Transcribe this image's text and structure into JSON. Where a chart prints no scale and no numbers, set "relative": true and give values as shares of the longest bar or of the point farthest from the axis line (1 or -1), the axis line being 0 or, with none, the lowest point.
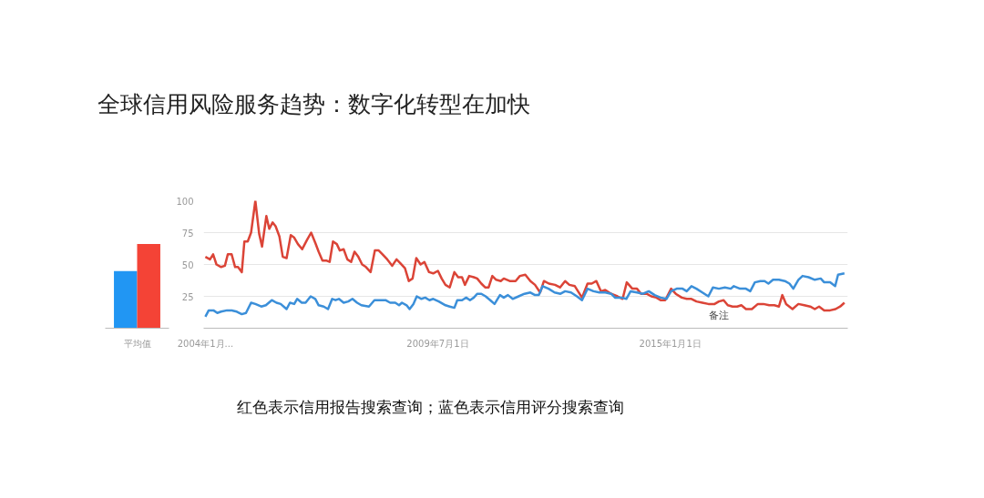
{
  "chart_data": [
    {
      "type": "bar",
      "relative": true,
      "categories": [
        "平均值"
      ],
      "series": [
        {
          "color": "#2196f3",
          "values": [
            0.68
          ]
        },
        {
          "color": "#f44336",
          "values": [
            1
          ]
        }
      ],
      "grid": false
    },
    {
      "type": "line",
      "title": "全球信用风险服务趋势：数字化转型在加快",
      "annotations": [
        "备注",
        "红色表示信用报告搜索查询；蓝色表示信用评分搜索查询"
      ],
      "xlim": [
        "2003-12-17",
        "2019-03-15"
      ],
      "ylim": [
        0,
        100
      ],
      "xticks": [
        {
          "value": "2004-01-01",
          "label": "2004年1月..."
        },
        {
          "value": "2009-07-01",
          "label": "2009年7月1日"
        },
        {
          "value": "2015-01-01",
          "label": "2015年1月1日"
        }
      ],
      "yticks": [
        25,
        50,
        75,
        100
      ],
      "grid": "y",
      "marker": "none",
      "line_style": "solid",
      "series": [
        {
          "color": "#db4437",
          "x": [
            "2004-01-01",
            "2004-02-10",
            "2004-03-08",
            "2004-04-06",
            "2004-05-16",
            "2004-06-18",
            "2004-07-13",
            "2004-08-15",
            "2004-09-14",
            "2004-10-09",
            "2004-11-11",
            "2004-12-03",
            "2005-01-01",
            "2005-01-30",
            "2005-03-08",
            "2005-04-10",
            "2005-05-05",
            "2005-06-11",
            "2005-07-06",
            "2005-08-04",
            "2005-08-30",
            "2005-10-02",
            "2005-10-31",
            "2005-12-03",
            "2006-01-08",
            "2006-02-07",
            "2006-03-11",
            "2006-04-17",
            "2006-05-27",
            "2006-07-03",
            "2006-08-08",
            "2006-09-06",
            "2006-10-09",
            "2006-11-15",
            "2006-12-10",
            "2007-01-08",
            "2007-02-10",
            "2007-03-08",
            "2007-04-10",
            "2007-05-12",
            "2007-06-14",
            "2007-07-13",
            "2007-08-15",
            "2007-09-17",
            "2007-10-20",
            "2007-11-29",
            "2008-01-05",
            "2008-02-07",
            "2008-03-11",
            "2008-04-21",
            "2008-06-03",
            "2008-07-10",
            "2008-08-12",
            "2008-09-21",
            "2008-10-24",
            "2008-11-26",
            "2008-12-28",
            "2009-02-03",
            "2009-03-08",
            "2009-04-17",
            "2009-05-23",
            "2009-07-03",
            "2009-08-04",
            "2009-09-06",
            "2009-10-13",
            "2009-11-22",
            "2009-12-25",
            "2010-01-27",
            "2010-02-21",
            "2010-03-30",
            "2010-05-09",
            "2010-06-07",
            "2010-07-13",
            "2010-08-15",
            "2010-09-14",
            "2010-10-16",
            "2010-11-18",
            "2010-12-28",
            "2011-01-23",
            "2011-03-15",
            "2011-05-05",
            "2011-06-11",
            "2011-07-28",
            "2011-09-10",
            "2011-10-20",
            "2011-12-03",
            "2012-01-05",
            "2012-02-17",
            "2012-04-10",
            "2012-05-23",
            "2012-07-06",
            "2012-08-12",
            "2012-09-28",
            "2012-11-29",
            "2013-01-16",
            "2013-02-21",
            "2013-04-02",
            "2013-05-12",
            "2013-06-18",
            "2013-08-08",
            "2013-10-02",
            "2013-11-15",
            "2013-12-21",
            "2014-02-07",
            "2014-03-19",
            "2014-04-24",
            "2014-06-11",
            "2014-07-21",
            "2014-09-03",
            "2014-10-09",
            "2014-11-18",
            "2015-01-08",
            "2015-02-17",
            "2015-04-10",
            "2015-05-23",
            "2015-07-03",
            "2015-08-15",
            "2015-10-05",
            "2015-11-26",
            "2016-01-19",
            "2016-02-25",
            "2016-04-06",
            "2016-05-12",
            "2016-06-22",
            "2016-08-01",
            "2016-09-06",
            "2016-10-16",
            "2016-12-06",
            "2017-01-27",
            "2017-03-15",
            "2017-05-05",
            "2017-06-18",
            "2017-07-28",
            "2017-08-26",
            "2017-09-28",
            "2017-11-22",
            "2018-01-12",
            "2018-03-04",
            "2018-04-24",
            "2018-06-03",
            "2018-07-10",
            "2018-08-23",
            "2018-10-13",
            "2018-11-29",
            "2019-01-08",
            "2019-02-14"
          ],
          "values": [
            56,
            54,
            58,
            50,
            48,
            49,
            58,
            58,
            48,
            48,
            44,
            68,
            68,
            75,
            100,
            74,
            64,
            88,
            78,
            83,
            80,
            72,
            56,
            55,
            73,
            71,
            66,
            62,
            69,
            75,
            67,
            60,
            53,
            53,
            52,
            68,
            66,
            61,
            62,
            54,
            52,
            60,
            56,
            50,
            48,
            44,
            61,
            61,
            58,
            54,
            49,
            54,
            51,
            47,
            37,
            39,
            55,
            50,
            52,
            44,
            43,
            45,
            39,
            34,
            32,
            44,
            40,
            40,
            34,
            41,
            40,
            39,
            35,
            32,
            32,
            41,
            38,
            37,
            39,
            37,
            37,
            41,
            42,
            37,
            34,
            28,
            37,
            35,
            34,
            32,
            37,
            34,
            33,
            24,
            35,
            35,
            37,
            29,
            30,
            27,
            25,
            23,
            36,
            31,
            31,
            27,
            27,
            25,
            24,
            22,
            22,
            31,
            27,
            24,
            23,
            23,
            21,
            20,
            19,
            19,
            21,
            22,
            18,
            17,
            17,
            18,
            15,
            15,
            19,
            19,
            18,
            18,
            17,
            26,
            19,
            15,
            19,
            18,
            17,
            15,
            17,
            14,
            14,
            15,
            17,
            20
          ]
        },
        {
          "color": "#3b8fd9",
          "x": [
            "2004-01-01",
            "2004-01-30",
            "2004-03-11",
            "2004-04-13",
            "2004-05-16",
            "2004-07-06",
            "2004-08-15",
            "2004-09-28",
            "2004-11-11",
            "2004-12-17",
            "2005-01-30",
            "2005-03-08",
            "2005-04-28",
            "2005-06-07",
            "2005-07-28",
            "2005-09-06",
            "2005-10-13",
            "2005-12-03",
            "2006-01-01",
            "2006-02-07",
            "2006-03-04",
            "2006-04-13",
            "2006-05-16",
            "2006-06-29",
            "2006-08-08",
            "2006-09-06",
            "2006-10-20",
            "2006-11-26",
            "2007-01-01",
            "2007-01-30",
            "2007-02-28",
            "2007-04-10",
            "2007-05-20",
            "2007-06-25",
            "2007-08-04",
            "2007-09-10",
            "2007-11-15",
            "2008-01-01",
            "2008-02-25",
            "2008-04-06",
            "2008-05-16",
            "2008-06-29",
            "2008-08-01",
            "2008-08-26",
            "2008-10-05",
            "2008-10-31",
            "2008-12-03",
            "2009-01-01",
            "2009-02-10",
            "2009-03-15",
            "2009-04-21",
            "2009-05-23",
            "2009-07-10",
            "2009-09-06",
            "2009-10-13",
            "2009-11-22",
            "2009-12-17",
            "2010-01-27",
            "2010-03-04",
            "2010-04-06",
            "2010-05-09",
            "2010-06-07",
            "2010-07-13",
            "2010-08-19",
            "2010-09-28",
            "2010-11-04",
            "2010-12-21",
            "2011-01-23",
            "2011-02-28",
            "2011-04-10",
            "2011-05-31",
            "2011-07-21",
            "2011-09-10",
            "2011-10-20",
            "2011-11-22",
            "2011-12-25",
            "2012-02-14",
            "2012-04-06",
            "2012-05-27",
            "2012-07-06",
            "2012-08-26",
            "2012-10-16",
            "2012-11-29",
            "2013-01-16",
            "2013-03-08",
            "2013-04-28",
            "2013-06-18",
            "2013-08-08",
            "2013-09-10",
            "2013-11-07",
            "2013-12-17",
            "2014-01-23",
            "2014-03-19",
            "2014-05-09",
            "2014-06-29",
            "2014-08-19",
            "2014-10-09",
            "2014-11-29",
            "2015-01-08",
            "2015-02-25",
            "2015-04-17",
            "2015-05-23",
            "2015-07-03",
            "2015-08-15",
            "2015-10-05",
            "2015-11-26",
            "2016-01-05",
            "2016-02-25",
            "2016-04-17",
            "2016-06-07",
            "2016-07-03",
            "2016-08-26",
            "2016-10-16",
            "2016-11-22",
            "2017-01-01",
            "2017-02-17",
            "2017-03-26",
            "2017-04-28",
            "2017-06-07",
            "2017-07-28",
            "2017-09-17",
            "2017-10-27",
            "2017-11-29",
            "2018-01-12",
            "2018-02-17",
            "2018-04-10",
            "2018-06-03",
            "2018-07-24",
            "2018-08-23",
            "2018-10-13",
            "2018-11-26",
            "2018-12-21",
            "2019-02-14"
          ],
          "values": [
            9,
            14,
            14,
            12,
            13,
            14,
            14,
            13,
            11,
            12,
            20,
            19,
            17,
            18,
            22,
            20,
            19,
            15,
            20,
            19,
            23,
            20,
            20,
            25,
            23,
            18,
            17,
            15,
            23,
            22,
            23,
            20,
            21,
            23,
            20,
            18,
            17,
            22,
            22,
            22,
            20,
            20,
            18,
            20,
            18,
            15,
            19,
            25,
            23,
            24,
            22,
            23,
            21,
            18,
            17,
            16,
            22,
            22,
            24,
            22,
            24,
            27,
            27,
            25,
            22,
            19,
            26,
            24,
            26,
            23,
            25,
            27,
            28,
            26,
            26,
            33,
            31,
            28,
            27,
            29,
            28,
            25,
            22,
            31,
            29,
            28,
            28,
            27,
            24,
            24,
            23,
            29,
            28,
            27,
            29,
            26,
            24,
            23,
            29,
            31,
            31,
            29,
            33,
            31,
            28,
            25,
            32,
            31,
            32,
            31,
            33,
            31,
            31,
            29,
            36,
            37,
            37,
            35,
            38,
            38,
            37,
            35,
            31,
            38,
            41,
            40,
            38,
            39,
            36,
            36,
            33,
            42,
            43
          ]
        }
      ]
    }
  ]
}
